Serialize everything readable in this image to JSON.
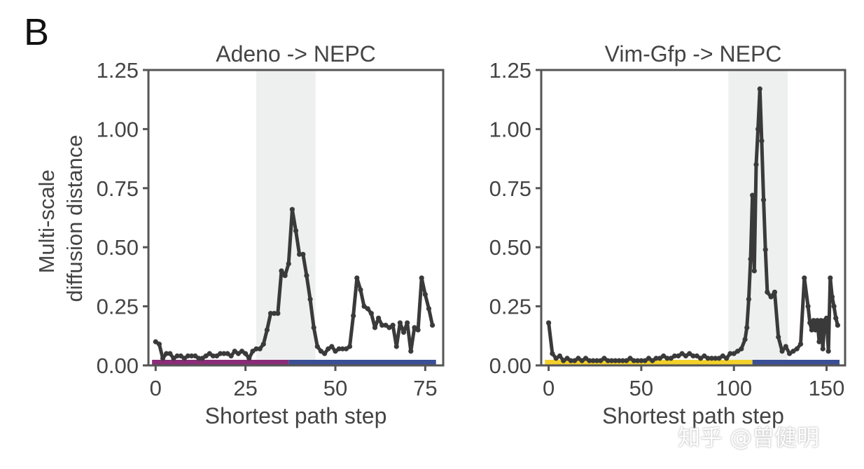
{
  "panel_label": "B",
  "ylabel_lines": [
    "Multi-scale",
    "diffusion distance"
  ],
  "watermark": "知乎 @曾健明",
  "colors": {
    "line": "#3a3a3a",
    "highlight": "#eef0f0",
    "axis": "#555555",
    "purple": "#8b2c78",
    "blue": "#3a4f96",
    "yellow": "#f3d12a"
  },
  "chart_data": [
    {
      "type": "line",
      "title": "Adeno -> NEPC",
      "xlabel": "Shortest path step",
      "ylabel": "Multi-scale diffusion distance",
      "xlim": [
        -2,
        80
      ],
      "ylim": [
        0,
        1.25
      ],
      "xticks": [
        0,
        25,
        50,
        75
      ],
      "yticks": [
        0,
        0.25,
        0.5,
        0.75,
        1.0
      ],
      "ytick_labels": [
        "0.00",
        "0.25",
        "0.50",
        "0.75",
        "1.00",
        "1.25"
      ],
      "highlight_x": [
        28,
        44.5
      ],
      "state_bar": [
        {
          "from": -1,
          "to": 37,
          "color": "purple"
        },
        {
          "from": 37,
          "to": 78,
          "color": "blue"
        }
      ],
      "x": [
        0,
        1,
        2,
        3,
        4,
        5,
        6,
        7,
        8,
        9,
        10,
        11,
        12,
        13,
        14,
        15,
        16,
        17,
        18,
        19,
        20,
        21,
        22,
        23,
        24,
        25,
        26,
        27,
        28,
        29,
        30,
        31,
        32,
        33,
        34,
        35,
        36,
        37,
        38,
        39,
        40,
        41,
        42,
        43,
        44,
        45,
        46,
        47,
        48,
        49,
        50,
        51,
        52,
        53,
        54,
        55,
        56,
        57,
        58,
        59,
        60,
        61,
        62,
        63,
        64,
        65,
        66,
        67,
        68,
        69,
        70,
        71,
        72,
        73,
        74,
        75,
        76,
        77
      ],
      "y": [
        0.1,
        0.09,
        0.03,
        0.05,
        0.05,
        0.03,
        0.04,
        0.04,
        0.03,
        0.04,
        0.04,
        0.04,
        0.03,
        0.03,
        0.04,
        0.05,
        0.04,
        0.04,
        0.05,
        0.05,
        0.05,
        0.04,
        0.06,
        0.05,
        0.06,
        0.05,
        0.03,
        0.06,
        0.07,
        0.07,
        0.09,
        0.15,
        0.22,
        0.22,
        0.22,
        0.4,
        0.38,
        0.43,
        0.66,
        0.57,
        0.47,
        0.47,
        0.38,
        0.28,
        0.16,
        0.08,
        0.06,
        0.05,
        0.07,
        0.08,
        0.06,
        0.07,
        0.07,
        0.07,
        0.08,
        0.21,
        0.37,
        0.32,
        0.25,
        0.24,
        0.22,
        0.16,
        0.2,
        0.17,
        0.17,
        0.16,
        0.17,
        0.08,
        0.18,
        0.14,
        0.18,
        0.06,
        0.16,
        0.15,
        0.37,
        0.3,
        0.24,
        0.17
      ]
    },
    {
      "type": "line",
      "title": "Vim-Gfp -> NEPC",
      "xlabel": "Shortest path step",
      "ylabel": "",
      "xlim": [
        -4,
        160
      ],
      "ylim": [
        0,
        1.25
      ],
      "xticks": [
        0,
        50,
        100,
        150
      ],
      "yticks": [
        0,
        0.25,
        0.5,
        0.75,
        1.0
      ],
      "ytick_labels": [
        "0.00",
        "0.25",
        "0.50",
        "0.75",
        "1.00",
        "1.25"
      ],
      "highlight_x": [
        97,
        129
      ],
      "state_bar": [
        {
          "from": -2,
          "to": 110,
          "color": "yellow"
        },
        {
          "from": 110,
          "to": 157,
          "color": "blue"
        }
      ],
      "x": [
        0,
        2,
        4,
        6,
        8,
        10,
        12,
        14,
        16,
        18,
        20,
        22,
        24,
        26,
        28,
        30,
        32,
        34,
        36,
        38,
        40,
        42,
        44,
        46,
        48,
        50,
        52,
        54,
        56,
        58,
        60,
        62,
        64,
        66,
        68,
        70,
        72,
        74,
        76,
        78,
        80,
        82,
        84,
        86,
        88,
        90,
        92,
        94,
        96,
        98,
        100,
        102,
        104,
        106,
        107,
        108,
        109,
        110,
        111,
        112,
        113,
        114,
        115,
        116,
        117,
        118,
        120,
        122,
        124,
        126,
        128,
        130,
        132,
        134,
        136,
        138,
        140,
        141,
        142,
        143,
        144,
        145,
        146,
        147,
        148,
        149,
        150,
        151,
        152,
        153,
        154,
        155,
        156
      ],
      "y": [
        0.18,
        0.05,
        0.03,
        0.04,
        0.02,
        0.03,
        0.02,
        0.02,
        0.03,
        0.02,
        0.03,
        0.02,
        0.02,
        0.02,
        0.02,
        0.03,
        0.02,
        0.02,
        0.02,
        0.02,
        0.02,
        0.02,
        0.03,
        0.02,
        0.02,
        0.02,
        0.02,
        0.03,
        0.02,
        0.03,
        0.03,
        0.04,
        0.03,
        0.03,
        0.04,
        0.04,
        0.05,
        0.04,
        0.05,
        0.04,
        0.04,
        0.03,
        0.04,
        0.03,
        0.03,
        0.03,
        0.03,
        0.04,
        0.03,
        0.05,
        0.05,
        0.06,
        0.07,
        0.11,
        0.16,
        0.28,
        0.45,
        0.72,
        0.4,
        0.85,
        1.0,
        1.17,
        0.95,
        0.7,
        0.49,
        0.31,
        0.29,
        0.31,
        0.12,
        0.06,
        0.08,
        0.05,
        0.06,
        0.07,
        0.09,
        0.37,
        0.25,
        0.18,
        0.15,
        0.19,
        0.15,
        0.19,
        0.1,
        0.19,
        0.07,
        0.19,
        0.2,
        0.06,
        0.37,
        0.29,
        0.25,
        0.2,
        0.17
      ]
    }
  ]
}
